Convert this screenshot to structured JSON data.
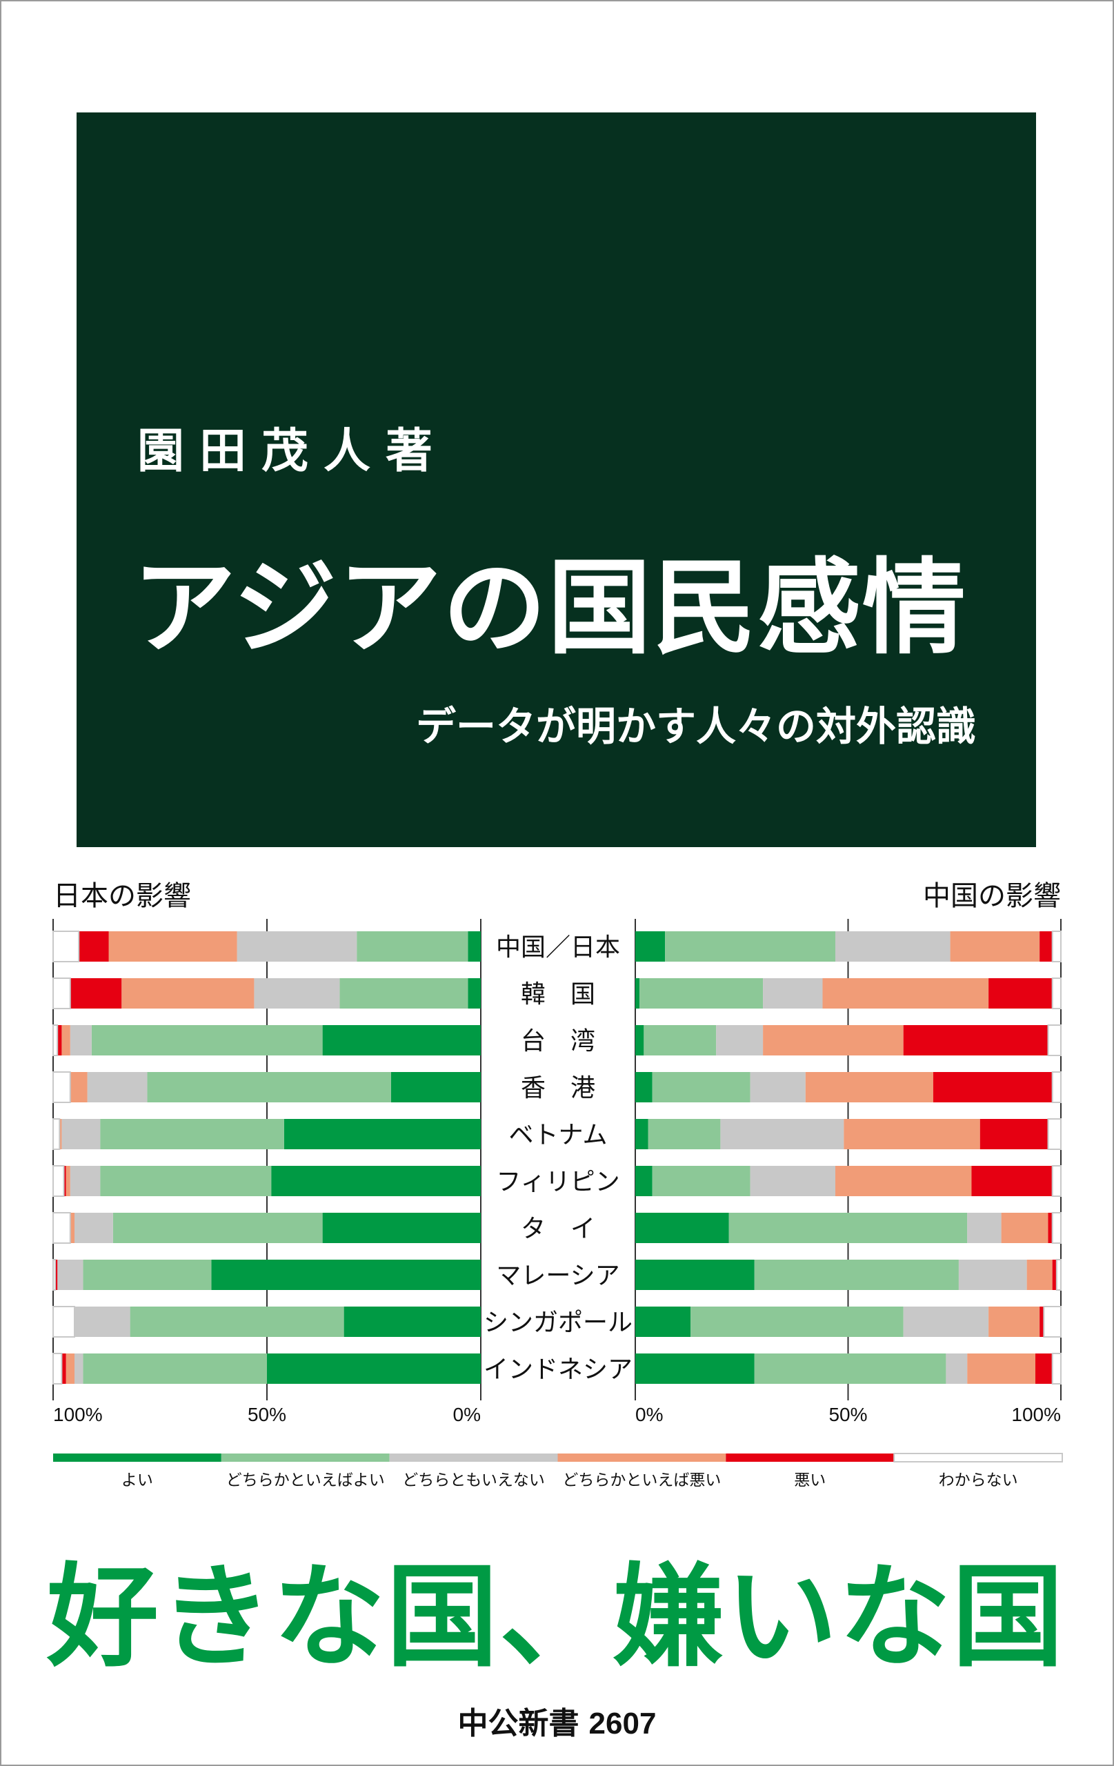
{
  "cover": {
    "author": "園田茂人著",
    "title": "アジアの国民感情",
    "subtitle": "データが明かす人々の対外認識",
    "tagline": "好きな国、嫌いな国",
    "series_name": "中公新書",
    "series_number": "2607",
    "panel_color": "#06301f",
    "tagline_color": "#009a44"
  },
  "chart_data": [
    {
      "type": "bar",
      "orientation": "horizontal-stacked",
      "title": "日本の影響",
      "direction": "right-to-left",
      "categories": [
        "中国／日本",
        "韓　国",
        "台　湾",
        "香　港",
        "ベトナム",
        "フィリピン",
        "タ　イ",
        "マレーシア",
        "シンガポール",
        "インドネシア"
      ],
      "series": [
        {
          "name": "よい",
          "color": "#009a44",
          "values": [
            3,
            3,
            37,
            21,
            46,
            49,
            37,
            63,
            32,
            50
          ]
        },
        {
          "name": "どちらかといえばよい",
          "color": "#8cc897",
          "values": [
            26,
            30,
            54,
            57,
            43,
            40,
            49,
            30,
            50,
            43
          ]
        },
        {
          "name": "どちらともいえない",
          "color": "#c8c8c8",
          "values": [
            28,
            20,
            5,
            14,
            9,
            7,
            9,
            6,
            13,
            2
          ]
        },
        {
          "name": "どちらかといえば悪い",
          "color": "#f19c77",
          "values": [
            30,
            31,
            2,
            4,
            0.5,
            1,
            1,
            0,
            0,
            2
          ]
        },
        {
          "name": "悪い",
          "color": "#e60012",
          "values": [
            7,
            12,
            1,
            0,
            0,
            0.5,
            0,
            0.5,
            0,
            1
          ]
        },
        {
          "name": "わからない",
          "color": "#ffffff",
          "values": [
            6,
            4,
            1,
            4,
            1.5,
            2.5,
            4,
            0.5,
            5,
            2
          ]
        }
      ],
      "xlim": [
        0,
        100
      ],
      "tick_labels": [
        "100%",
        "50%",
        "0%"
      ]
    },
    {
      "type": "bar",
      "orientation": "horizontal-stacked",
      "title": "中国の影響",
      "direction": "left-to-right",
      "categories": [
        "中国／日本",
        "韓　国",
        "台　湾",
        "香　港",
        "ベトナム",
        "フィリピン",
        "タ　イ",
        "マレーシア",
        "シンガポール",
        "インドネシア"
      ],
      "series": [
        {
          "name": "よい",
          "color": "#009a44",
          "values": [
            7,
            1,
            2,
            4,
            3,
            4,
            22,
            28,
            13,
            28
          ]
        },
        {
          "name": "どちらかといえばよい",
          "color": "#8cc897",
          "values": [
            40,
            29,
            17,
            23,
            17,
            23,
            56,
            48,
            50,
            45
          ]
        },
        {
          "name": "どちらともいえない",
          "color": "#c8c8c8",
          "values": [
            27,
            14,
            11,
            13,
            29,
            20,
            8,
            16,
            20,
            5
          ]
        },
        {
          "name": "どちらかといえば悪い",
          "color": "#f19c77",
          "values": [
            21,
            39,
            33,
            30,
            32,
            32,
            11,
            6,
            12,
            16
          ]
        },
        {
          "name": "悪い",
          "color": "#e60012",
          "values": [
            3,
            15,
            34,
            28,
            16,
            19,
            1,
            1,
            1,
            4
          ]
        },
        {
          "name": "わからない",
          "color": "#ffffff",
          "values": [
            2,
            2,
            3,
            2,
            3,
            2,
            2,
            1,
            4,
            2
          ]
        }
      ],
      "xlim": [
        0,
        100
      ],
      "tick_labels": [
        "0%",
        "50%",
        "100%"
      ]
    }
  ]
}
